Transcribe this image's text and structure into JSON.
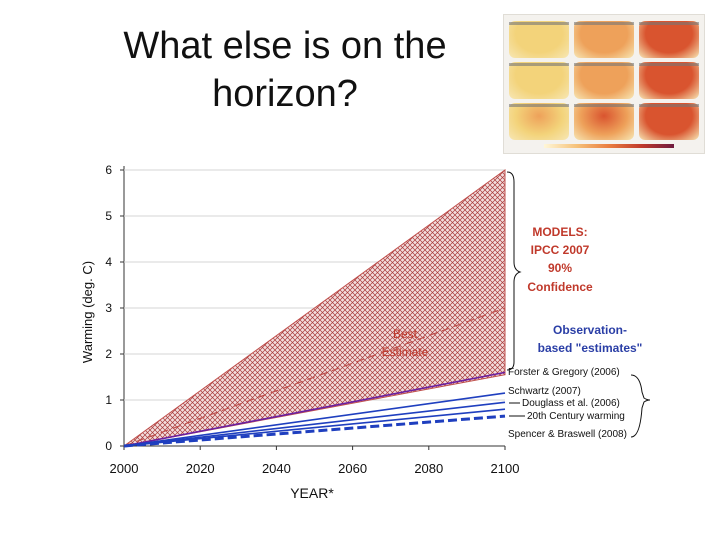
{
  "slide": {
    "title_line1": "What else is on the",
    "title_line2": "horizon?"
  },
  "maps_thumbnail": {
    "description_icon": "world-temperature-maps-icon",
    "colors": [
      "#f3d37a",
      "#eea15a",
      "#d9542f"
    ]
  },
  "chart_data": {
    "type": "area",
    "xlabel": "YEAR*",
    "ylabel": "Warming (deg. C)",
    "xlim": [
      2000,
      2100
    ],
    "ylim": [
      0,
      6
    ],
    "x_ticks": [
      2000,
      2020,
      2040,
      2060,
      2080,
      2100
    ],
    "y_ticks": [
      0,
      1,
      2,
      3,
      4,
      5,
      6
    ],
    "band": {
      "name": "MODELS: IPCC 2007 90% Confidence",
      "x": [
        2000,
        2100
      ],
      "upper": [
        0,
        6.0
      ],
      "lower": [
        0,
        1.55
      ],
      "color": "#c0504d"
    },
    "best_estimate": {
      "x": [
        2000,
        2100
      ],
      "y": [
        0,
        3.0
      ],
      "color": "#c0504d"
    },
    "series": [
      {
        "name": "Forster & Gregory (2006)",
        "x": [
          2000,
          2100
        ],
        "y": [
          0,
          1.6
        ],
        "color": "#6a1fa0",
        "style": "solid"
      },
      {
        "name": "Schwartz (2007)",
        "x": [
          2000,
          2100
        ],
        "y": [
          0,
          1.15
        ],
        "color": "#1f3fbf",
        "style": "solid"
      },
      {
        "name": "Douglass et al. (2006)",
        "x": [
          2000,
          2100
        ],
        "y": [
          0,
          0.95
        ],
        "color": "#1f3fbf",
        "style": "solid"
      },
      {
        "name": "20th Century warming",
        "x": [
          2000,
          2100
        ],
        "y": [
          0,
          0.8
        ],
        "color": "#1f3fbf",
        "style": "solid"
      },
      {
        "name": "Spencer & Braswell (2008)",
        "x": [
          2000,
          2100
        ],
        "y": [
          0,
          0.65
        ],
        "color": "#1f3fbf",
        "style": "dashed"
      }
    ],
    "annotations": {
      "models_label": [
        "MODELS:",
        "IPCC 2007",
        "90%",
        "Confidence"
      ],
      "best_estimate_label": [
        "Best",
        "Estimate"
      ],
      "observation_label": [
        "Observation-",
        "based \"estimates\""
      ]
    }
  }
}
